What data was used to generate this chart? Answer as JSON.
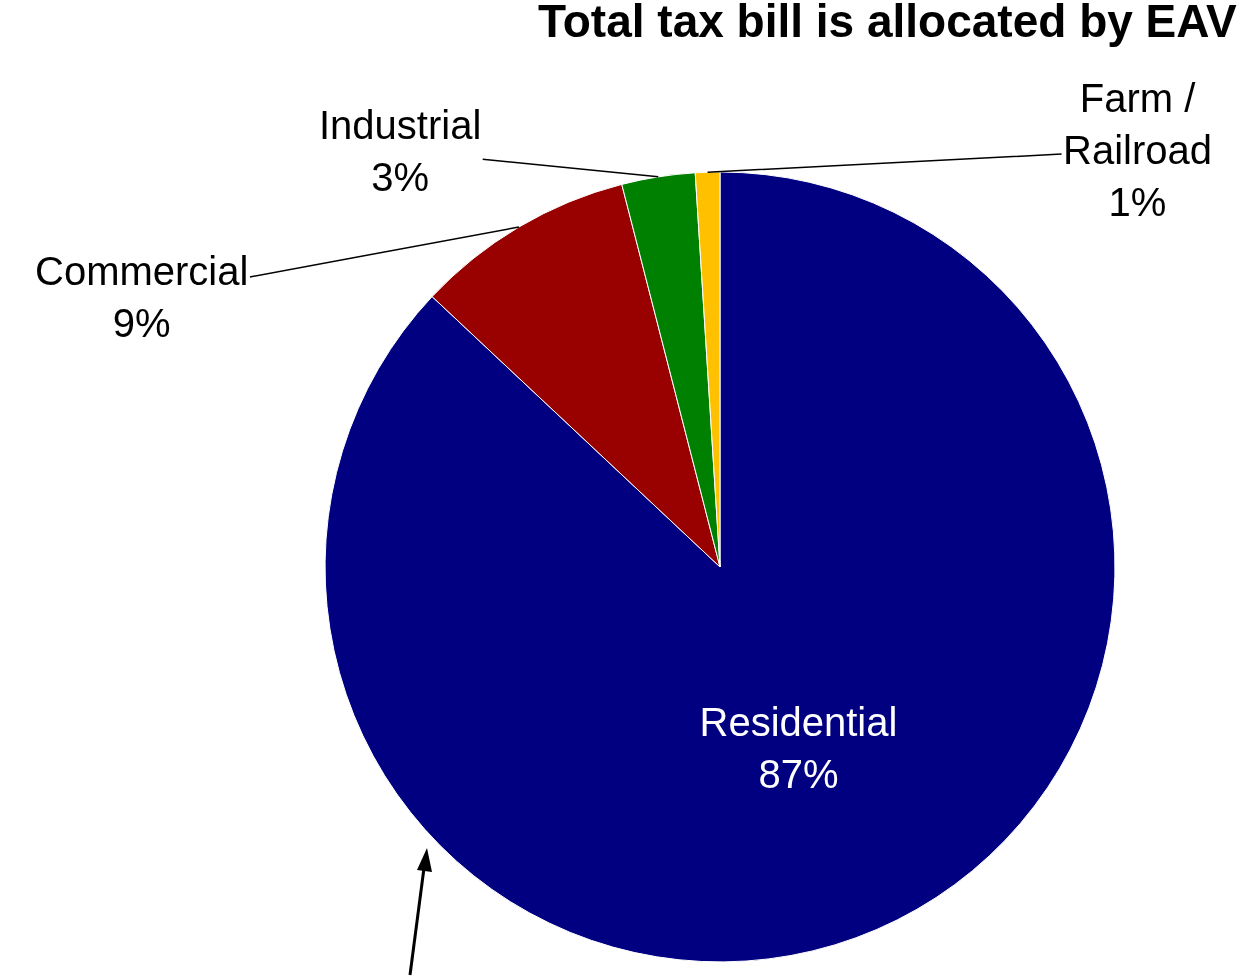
{
  "chart_data": {
    "type": "pie",
    "title": "Total tax bill is allocated by EAV",
    "categories": [
      "Residential",
      "Commercial",
      "Industrial",
      "Farm / Railroad"
    ],
    "values": [
      87,
      9,
      3,
      1
    ],
    "value_labels": [
      "87%",
      "9%",
      "3%",
      "1%"
    ],
    "colors": [
      "#000080",
      "#990000",
      "#008000",
      "#ffc000"
    ],
    "legend": false
  }
}
